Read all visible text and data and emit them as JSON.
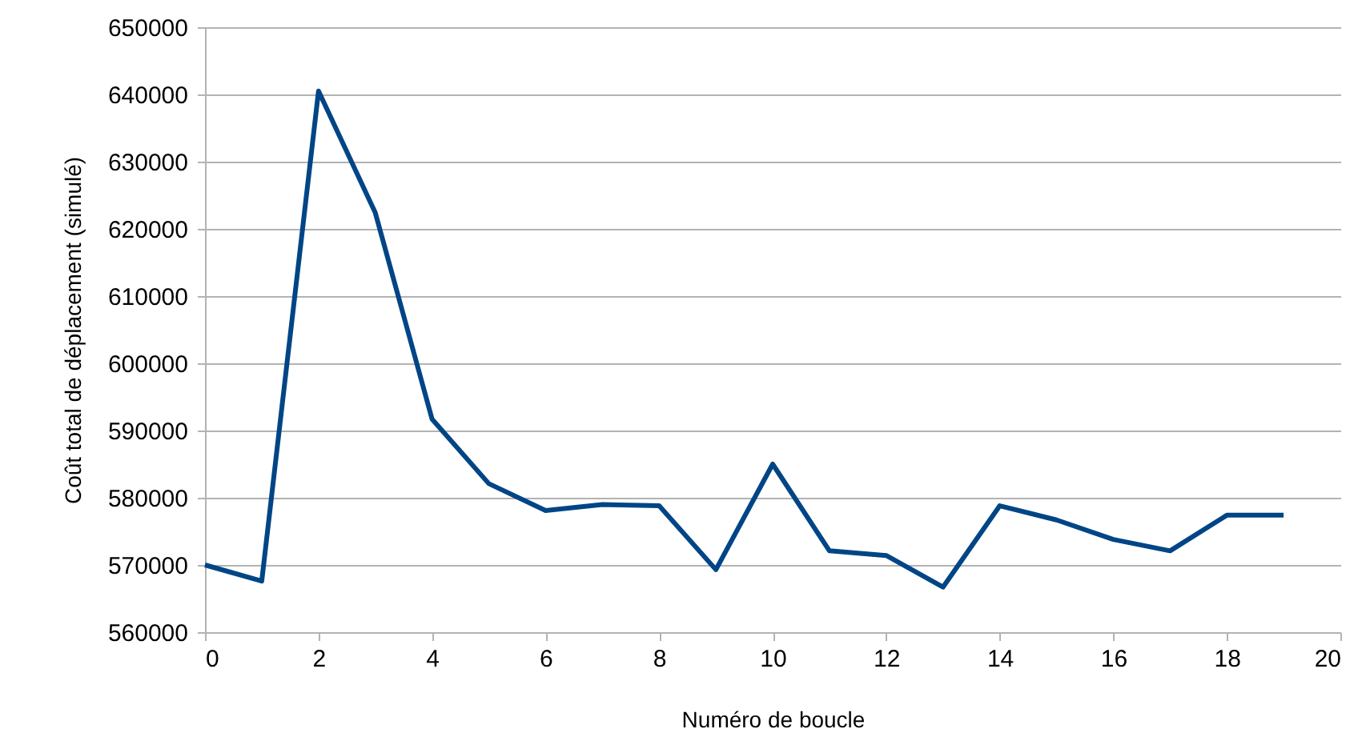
{
  "chart_data": {
    "type": "line",
    "xlabel": "Numéro de boucle",
    "ylabel": "Coût total de déplacement (simulé)",
    "x": [
      0,
      1,
      2,
      3,
      4,
      5,
      6,
      7,
      8,
      9,
      10,
      11,
      12,
      13,
      14,
      15,
      16,
      17,
      18,
      19
    ],
    "series": [
      {
        "color": "#004586",
        "values": [
          570000,
          567600,
          640500,
          622400,
          591700,
          582100,
          578100,
          579000,
          578800,
          569300,
          585000,
          572100,
          571400,
          566700,
          578800,
          576700,
          573800,
          572100,
          577400,
          577400
        ]
      }
    ],
    "xlim": [
      0,
      20
    ],
    "xticks": [
      0,
      2,
      4,
      6,
      8,
      10,
      12,
      14,
      16,
      18,
      20
    ],
    "ylim": [
      560000,
      650000
    ],
    "yticks": [
      560000,
      570000,
      580000,
      590000,
      600000,
      610000,
      620000,
      630000,
      640000,
      650000
    ],
    "grid": "y",
    "marker": "none",
    "line_style": "solid"
  }
}
